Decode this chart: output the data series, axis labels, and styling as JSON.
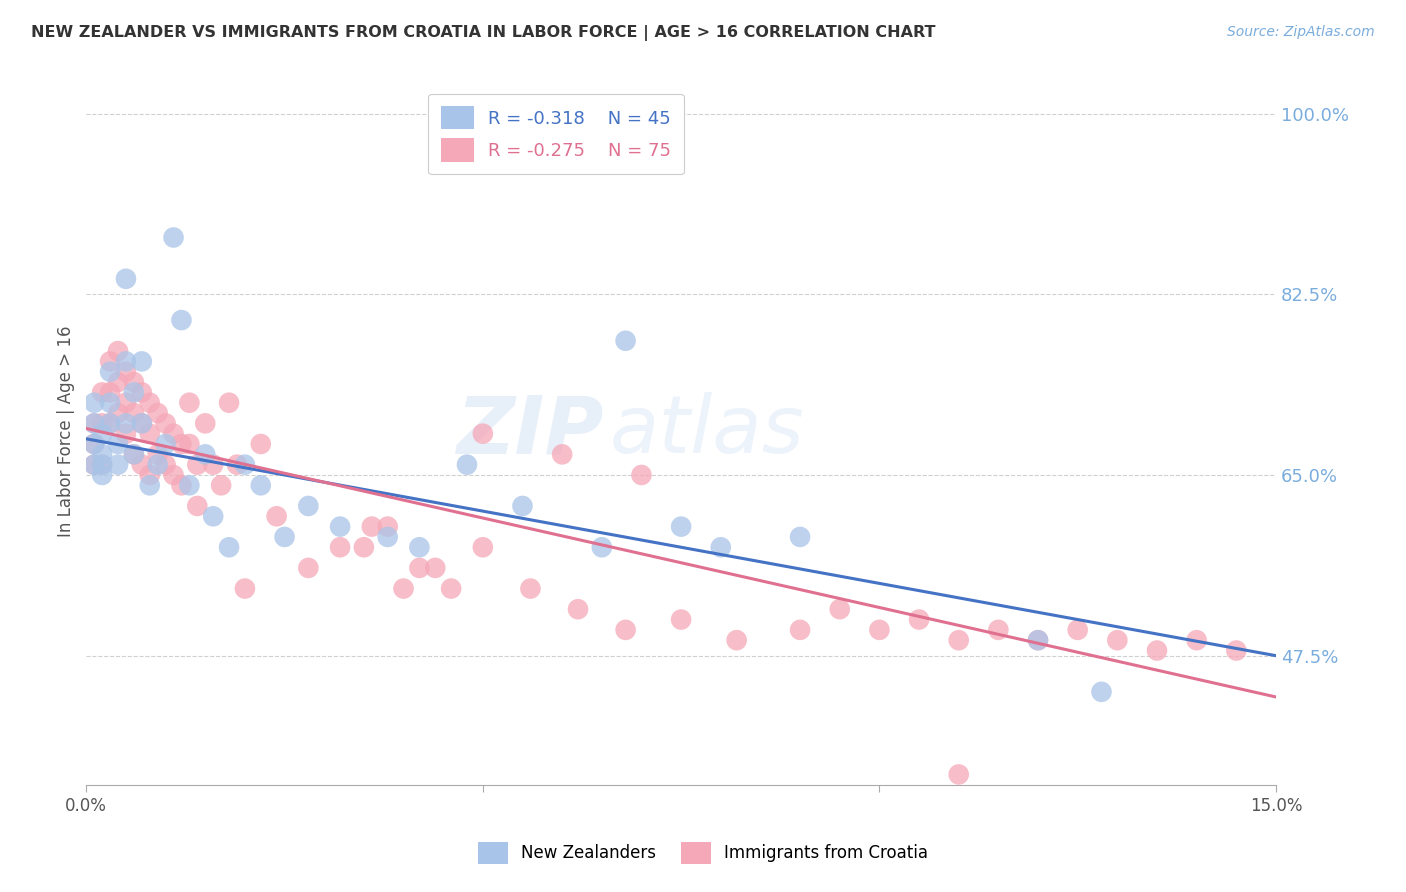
{
  "title": "NEW ZEALANDER VS IMMIGRANTS FROM CROATIA IN LABOR FORCE | AGE > 16 CORRELATION CHART",
  "source": "Source: ZipAtlas.com",
  "ylabel": "In Labor Force | Age > 16",
  "x_min": 0.0,
  "x_max": 0.15,
  "y_min": 0.35,
  "y_max": 1.035,
  "y_ticks": [
    0.475,
    0.65,
    0.825,
    1.0
  ],
  "y_tick_labels": [
    "47.5%",
    "65.0%",
    "82.5%",
    "100.0%"
  ],
  "x_ticks": [
    0.0,
    0.05,
    0.1,
    0.15
  ],
  "x_tick_labels": [
    "0.0%",
    "",
    "",
    "15.0%"
  ],
  "blue_R": -0.318,
  "blue_N": 45,
  "pink_R": -0.275,
  "pink_N": 75,
  "blue_color": "#a8c4e8",
  "pink_color": "#f5a8b8",
  "blue_line_color": "#4472c4",
  "pink_line_color": "#e07090",
  "legend_label_blue": "New Zealanders",
  "legend_label_pink": "Immigrants from Croatia",
  "watermark_part1": "ZIP",
  "watermark_part2": "atlas",
  "blue_scatter_x": [
    0.001,
    0.001,
    0.001,
    0.001,
    0.002,
    0.002,
    0.002,
    0.002,
    0.003,
    0.003,
    0.003,
    0.004,
    0.004,
    0.005,
    0.005,
    0.005,
    0.006,
    0.006,
    0.007,
    0.007,
    0.008,
    0.009,
    0.01,
    0.011,
    0.012,
    0.013,
    0.015,
    0.016,
    0.018,
    0.02,
    0.022,
    0.025,
    0.028,
    0.032,
    0.038,
    0.042,
    0.048,
    0.055,
    0.065,
    0.068,
    0.075,
    0.08,
    0.09,
    0.12,
    0.128
  ],
  "blue_scatter_y": [
    0.66,
    0.68,
    0.7,
    0.72,
    0.65,
    0.67,
    0.69,
    0.66,
    0.75,
    0.72,
    0.7,
    0.68,
    0.66,
    0.84,
    0.76,
    0.7,
    0.73,
    0.67,
    0.76,
    0.7,
    0.64,
    0.66,
    0.68,
    0.88,
    0.8,
    0.64,
    0.67,
    0.61,
    0.58,
    0.66,
    0.64,
    0.59,
    0.62,
    0.6,
    0.59,
    0.58,
    0.66,
    0.62,
    0.58,
    0.78,
    0.6,
    0.58,
    0.59,
    0.49,
    0.44
  ],
  "pink_scatter_x": [
    0.001,
    0.001,
    0.001,
    0.002,
    0.002,
    0.002,
    0.003,
    0.003,
    0.003,
    0.004,
    0.004,
    0.004,
    0.005,
    0.005,
    0.005,
    0.006,
    0.006,
    0.006,
    0.007,
    0.007,
    0.007,
    0.008,
    0.008,
    0.008,
    0.009,
    0.009,
    0.01,
    0.01,
    0.011,
    0.011,
    0.012,
    0.012,
    0.013,
    0.013,
    0.014,
    0.014,
    0.015,
    0.016,
    0.017,
    0.018,
    0.019,
    0.02,
    0.022,
    0.024,
    0.028,
    0.032,
    0.036,
    0.04,
    0.044,
    0.05,
    0.056,
    0.062,
    0.068,
    0.075,
    0.082,
    0.09,
    0.095,
    0.1,
    0.105,
    0.11,
    0.115,
    0.12,
    0.125,
    0.13,
    0.135,
    0.14,
    0.145,
    0.05,
    0.06,
    0.07,
    0.035,
    0.038,
    0.042,
    0.046,
    0.11
  ],
  "pink_scatter_y": [
    0.66,
    0.68,
    0.7,
    0.73,
    0.7,
    0.66,
    0.76,
    0.73,
    0.7,
    0.77,
    0.74,
    0.71,
    0.75,
    0.72,
    0.69,
    0.74,
    0.71,
    0.67,
    0.73,
    0.7,
    0.66,
    0.72,
    0.69,
    0.65,
    0.71,
    0.67,
    0.7,
    0.66,
    0.69,
    0.65,
    0.68,
    0.64,
    0.72,
    0.68,
    0.66,
    0.62,
    0.7,
    0.66,
    0.64,
    0.72,
    0.66,
    0.54,
    0.68,
    0.61,
    0.56,
    0.58,
    0.6,
    0.54,
    0.56,
    0.58,
    0.54,
    0.52,
    0.5,
    0.51,
    0.49,
    0.5,
    0.52,
    0.5,
    0.51,
    0.49,
    0.5,
    0.49,
    0.5,
    0.49,
    0.48,
    0.49,
    0.48,
    0.69,
    0.67,
    0.65,
    0.58,
    0.6,
    0.56,
    0.54,
    0.36
  ],
  "background_color": "#ffffff",
  "grid_color": "#d0d0d0",
  "title_color": "#333333",
  "axis_label_color": "#555555",
  "right_tick_color": "#7aaddd",
  "bottom_tick_color": "#555555"
}
